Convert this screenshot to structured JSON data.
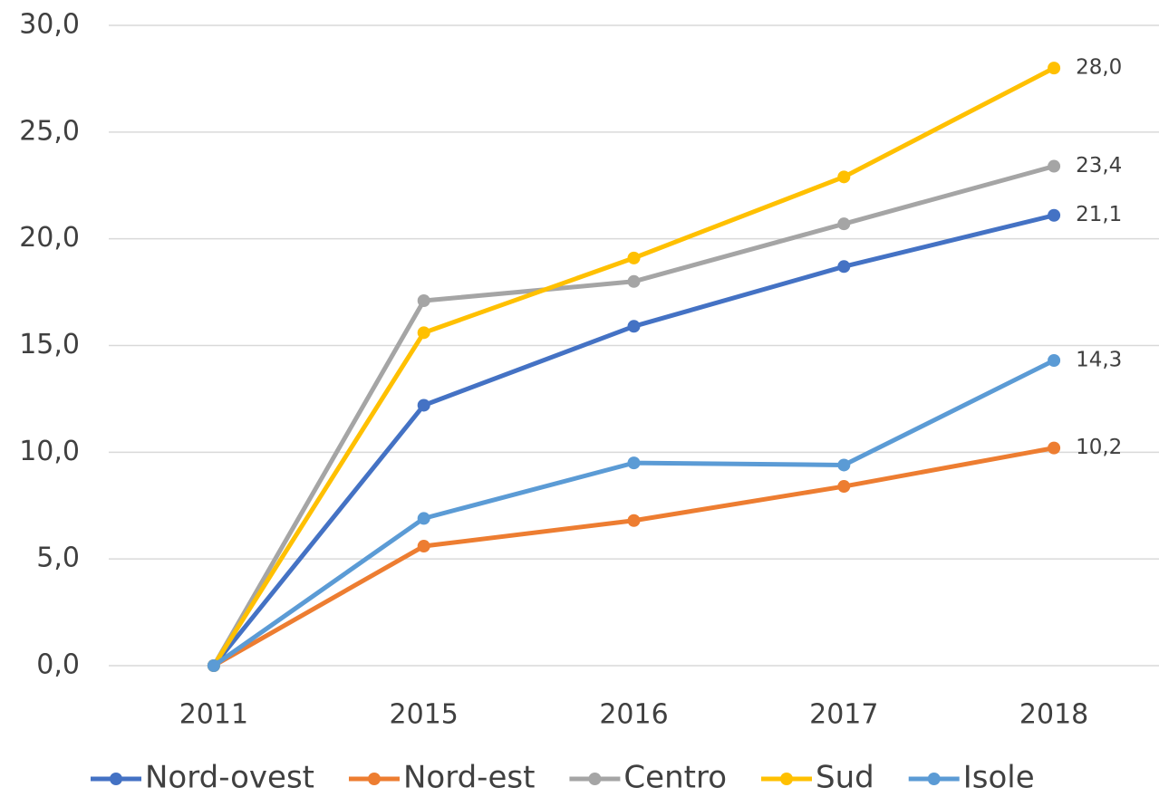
{
  "chart_data": {
    "type": "line",
    "categories": [
      "2011",
      "2015",
      "2016",
      "2017",
      "2018"
    ],
    "series": [
      {
        "name": "Nord-ovest",
        "color": "#4472c4",
        "values": [
          0,
          12.2,
          15.9,
          18.7,
          21.1
        ],
        "value_labels": [
          null,
          null,
          null,
          null,
          "21,1"
        ]
      },
      {
        "name": "Nord-est",
        "color": "#ed7d31",
        "values": [
          0,
          5.6,
          6.8,
          8.4,
          10.2
        ],
        "value_labels": [
          null,
          null,
          null,
          null,
          "10,2"
        ]
      },
      {
        "name": "Centro",
        "color": "#a5a5a5",
        "values": [
          0,
          17.1,
          18.0,
          20.7,
          23.4
        ],
        "value_labels": [
          null,
          null,
          null,
          null,
          "23,4"
        ]
      },
      {
        "name": "Sud",
        "color": "#ffc000",
        "values": [
          0,
          15.6,
          19.1,
          22.9,
          28.0
        ],
        "value_labels": [
          null,
          null,
          null,
          null,
          "28,0"
        ]
      },
      {
        "name": "Isole",
        "color": "#5b9bd5",
        "values": [
          0,
          6.9,
          9.5,
          9.4,
          14.3
        ],
        "value_labels": [
          null,
          null,
          null,
          null,
          "14,3"
        ]
      }
    ],
    "ylim": [
      0,
      30
    ],
    "yticks": [
      {
        "value": 0,
        "label": "0,0"
      },
      {
        "value": 5,
        "label": "5,0"
      },
      {
        "value": 10,
        "label": "10,0"
      },
      {
        "value": 15,
        "label": "15,0"
      },
      {
        "value": 20,
        "label": "20,0"
      },
      {
        "value": 25,
        "label": "25,0"
      },
      {
        "value": 30,
        "label": "30,0"
      }
    ],
    "grid": true,
    "legend": "bottom"
  }
}
